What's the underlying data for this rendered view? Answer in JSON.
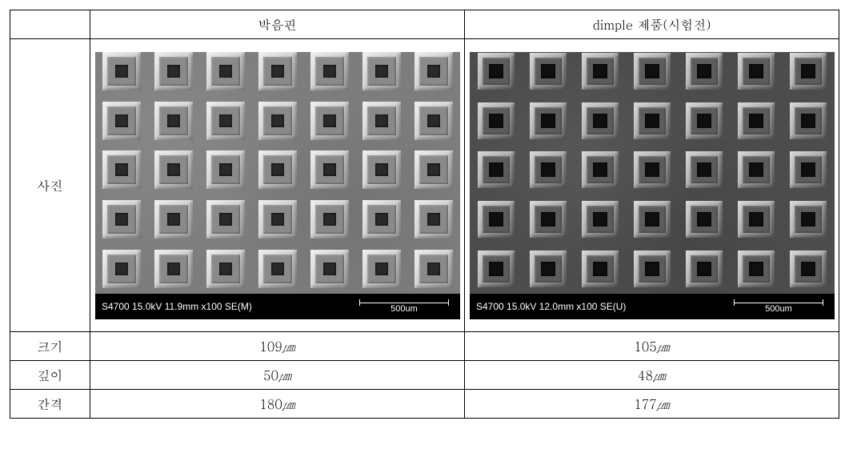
{
  "table": {
    "headers": {
      "blank": "",
      "col1": "박음핀",
      "col2": "dimple 제품(시험전)"
    },
    "row_labels": {
      "photo": "사진",
      "size": "크기",
      "depth": "깊이",
      "spacing": "간격"
    },
    "values": {
      "size": {
        "col1": "109",
        "col2": "105"
      },
      "depth": {
        "col1": "50",
        "col2": "48"
      },
      "spacing": {
        "col1": "180",
        "col2": "177"
      }
    },
    "unit_symbol": "㎛",
    "unit_prefix": "μ"
  },
  "sem_images": {
    "left": {
      "info_text": "S4700 15.0kV 11.9mm x100 SE(M)",
      "scalebar_label": "500um",
      "background_style": {
        "base": "#7c7c7c",
        "noise_overlay": "radial-gradient(circle at 20% 30%, rgba(255,255,255,0.08) 0%, transparent 40%), radial-gradient(circle at 70% 60%, rgba(0,0,0,0.08) 0%, transparent 40%), repeating-linear-gradient(45deg, rgba(255,255,255,0.015) 0 2px, transparent 2px 4px)"
      },
      "dimple": {
        "cell_size": 60,
        "outer_size": 48,
        "inner_size": 16,
        "outer_style": {
          "border_top": "linear-gradient(135deg, #ececec 0%, #c8c8c8 50%, #9a9a9a 100%)",
          "fill": "#8a8a8a",
          "shadow": "inset 2px 2px 4px rgba(255,255,255,0.55), inset -2px -2px 4px rgba(0,0,0,0.35)"
        },
        "inner_style": {
          "fill": "#2a2a2a",
          "shadow": "inset 0 0 3px rgba(0,0,0,0.9)"
        }
      }
    },
    "right": {
      "info_text": "S4700 15.0kV 12.0mm x100 SE(U)",
      "scalebar_label": "500um",
      "background_style": {
        "base": "#4b4b4b",
        "noise_overlay": "radial-gradient(circle at 30% 40%, rgba(255,255,255,0.06) 0%, transparent 40%), radial-gradient(circle at 60% 70%, rgba(0,0,0,0.08) 0%, transparent 40%), repeating-linear-gradient(30deg, rgba(255,255,255,0.012) 0 2px, transparent 2px 4px)"
      },
      "dimple": {
        "cell_size": 60,
        "outer_size": 46,
        "inner_size": 18,
        "outer_style": {
          "border_top": "linear-gradient(135deg, #d0d0d0 0%, #a0a0a0 50%, #6a6a6a 100%)",
          "fill": "#5c5c5c",
          "shadow": "inset 2px 2px 4px rgba(255,255,255,0.45), inset -2px -2px 4px rgba(0,0,0,0.45)"
        },
        "inner_style": {
          "fill": "#0f0f0f",
          "shadow": "inset 0 0 3px rgba(0,0,0,1)"
        }
      }
    },
    "grid": {
      "cols": 7,
      "rows": 5
    }
  },
  "styling": {
    "border_color": "#000000",
    "body_font_size": 16,
    "infobar_font_size": 12,
    "infobar_bg": "#000000",
    "infobar_fg": "#ffffff"
  }
}
